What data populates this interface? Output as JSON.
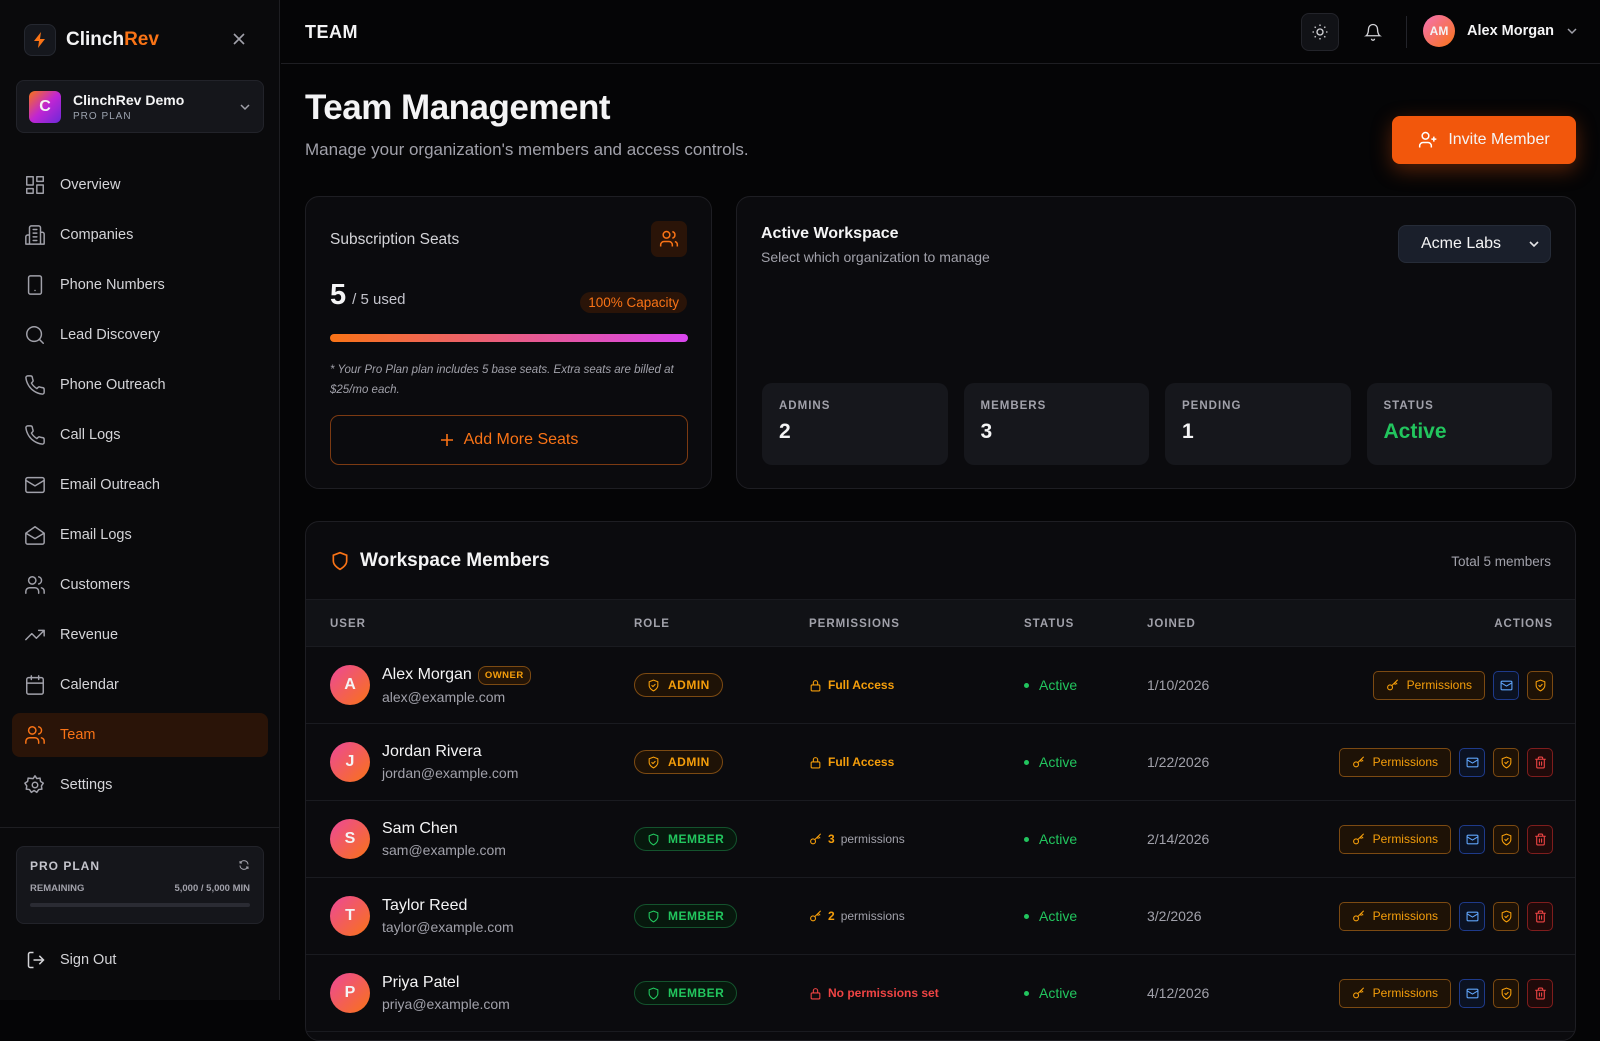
{
  "sidebar": {
    "brand": {
      "first": "Clinch",
      "second": "Rev"
    },
    "org": {
      "initial": "C",
      "name": "ClinchRev Demo",
      "plan": "PRO PLAN"
    },
    "nav": [
      {
        "label": "Overview",
        "active": false
      },
      {
        "label": "Companies",
        "active": false
      },
      {
        "label": "Phone Numbers",
        "active": false
      },
      {
        "label": "Lead Discovery",
        "active": false
      },
      {
        "label": "Phone Outreach",
        "active": false
      },
      {
        "label": "Call Logs",
        "active": false
      },
      {
        "label": "Email Outreach",
        "active": false
      },
      {
        "label": "Email Logs",
        "active": false
      },
      {
        "label": "Customers",
        "active": false
      },
      {
        "label": "Revenue",
        "active": false
      },
      {
        "label": "Calendar",
        "active": false
      },
      {
        "label": "Team",
        "active": true
      },
      {
        "label": "Settings",
        "active": false
      }
    ],
    "usage": {
      "title": "PRO PLAN",
      "label": "REMAINING",
      "value": "5,000 / 5,000 MIN"
    },
    "sign_out": "Sign Out"
  },
  "topbar": {
    "title": "TEAM",
    "user": {
      "initials": "AM",
      "name": "Alex Morgan"
    }
  },
  "header": {
    "title": "Team Management",
    "subtitle": "Manage your organization's members and access controls.",
    "button": "Invite Member"
  },
  "seats": {
    "title": "Subscription Seats",
    "used": "5",
    "of": "/ 5 used",
    "capacity": "100% Capacity",
    "note": "* Your Pro Plan plan includes 5 base seats. Extra seats are billed at $25/mo each.",
    "button": "Add More Seats"
  },
  "workspace": {
    "title": "Active Workspace",
    "subtitle": "Select which organization to manage",
    "selected": "Acme Labs",
    "stats": [
      {
        "label": "ADMINS",
        "value": "2"
      },
      {
        "label": "MEMBERS",
        "value": "3"
      },
      {
        "label": "PENDING",
        "value": "1"
      },
      {
        "label": "STATUS",
        "value": "Active"
      }
    ]
  },
  "members": {
    "title": "Workspace Members",
    "total": "Total 5 members",
    "columns": [
      "USER",
      "ROLE",
      "PERMISSIONS",
      "STATUS",
      "JOINED",
      "ACTIONS"
    ],
    "rows": [
      {
        "initial": "A",
        "name": "Alex Morgan",
        "badge": "OWNER",
        "email": "alex@example.com",
        "role": "ADMIN",
        "permissions": "Full Access",
        "status": "Active",
        "joined": "1/10/2026",
        "action": "Permissions",
        "deletable": false
      },
      {
        "initial": "J",
        "name": "Jordan Rivera",
        "email": "jordan@example.com",
        "role": "ADMIN",
        "permissions": "Full Access",
        "status": "Active",
        "joined": "1/22/2026",
        "action": "Permissions",
        "deletable": true
      },
      {
        "initial": "S",
        "name": "Sam Chen",
        "email": "sam@example.com",
        "role": "MEMBER",
        "permissions_count": "3",
        "permissions": "permissions",
        "status": "Active",
        "joined": "2/14/2026",
        "action": "Permissions",
        "deletable": true
      },
      {
        "initial": "T",
        "name": "Taylor Reed",
        "email": "taylor@example.com",
        "role": "MEMBER",
        "permissions_count": "2",
        "permissions": "permissions",
        "status": "Active",
        "joined": "3/2/2026",
        "action": "Permissions",
        "deletable": true
      },
      {
        "initial": "P",
        "name": "Priya Patel",
        "email": "priya@example.com",
        "role": "MEMBER",
        "permissions": "No permissions set",
        "status": "Active",
        "joined": "4/12/2026",
        "action": "Permissions",
        "deletable": true
      }
    ]
  }
}
